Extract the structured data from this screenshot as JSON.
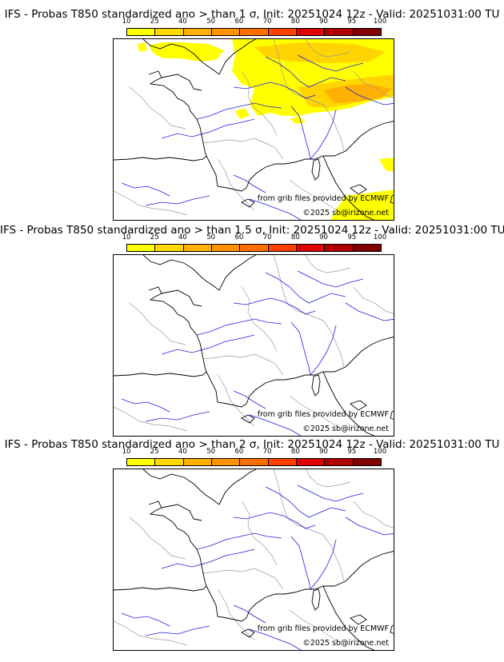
{
  "panels": [
    {
      "title": "IFS - Probas T850  standardized ano > than 1 σ, Init: 20251024 12z - Valid: 20251031:00 TU",
      "has_field": true,
      "anomaly_sigma": 1,
      "max_probability_percent": 60
    },
    {
      "title": "IFS - Probas T850  standardized ano > than 1.5 σ, Init: 20251024 12z - Valid: 20251031:00 TU",
      "has_field": false,
      "anomaly_sigma": 1.5,
      "max_probability_percent": 10
    },
    {
      "title": "IFS - Probas T850  standardized ano > than 2 σ, Init: 20251024 12z - Valid: 20251031:00 TU",
      "has_field": false,
      "anomaly_sigma": 2,
      "max_probability_percent": 0
    }
  ],
  "colorbar": {
    "ticks": [
      "10",
      "25",
      "40",
      "50",
      "60",
      "70",
      "80",
      "90",
      "95",
      "100"
    ],
    "colors": [
      "#ffff00",
      "#ffd800",
      "#ffb000",
      "#ff9000",
      "#ff6f00",
      "#ff3f00",
      "#e00000",
      "#b00000",
      "#800000"
    ]
  },
  "credit": {
    "source": "from grib files provided by ECMWF",
    "copyright": "©2025 sb@irizone.net"
  },
  "map_colors": {
    "coast": "#000000",
    "rivers": "#2020e0",
    "borders": "#9a9a9a",
    "prob_low": "#ffff00",
    "prob_mid": "#ffd400",
    "prob_high": "#ffb000"
  }
}
